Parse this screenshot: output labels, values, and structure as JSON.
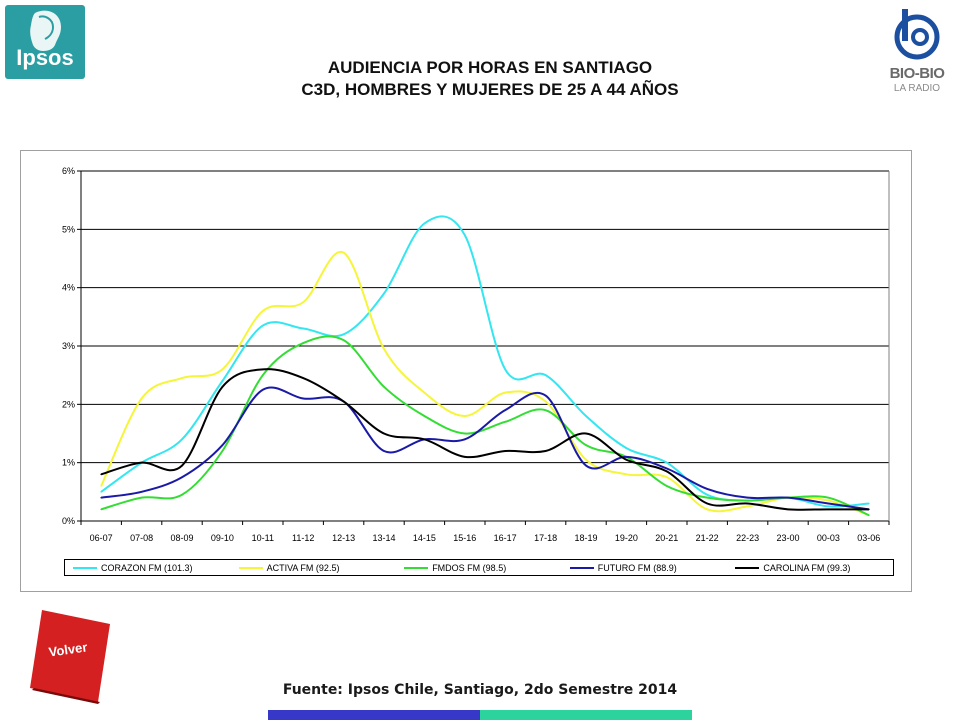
{
  "logos": {
    "ipsos_text": "Ipsos",
    "radio_name": "BIO-BIO",
    "radio_sub": "LA RADIO"
  },
  "header": {
    "title_line1": "AUDIENCIA POR HORAS EN SANTIAGO",
    "title_line2": "C3D, HOMBRES Y MUJERES DE 25 A 44 AÑOS"
  },
  "buttons": {
    "volver_label": "Volver"
  },
  "footer": {
    "source": "Fuente: Ipsos Chile, Santiago, 2do Semestre 2014"
  },
  "colors": {
    "ipsos_teal": "#2a9ea3",
    "volver_red": "#d42020",
    "bar_blue": "#3737c8",
    "bar_green": "#2cd39c"
  },
  "chart_data": {
    "type": "line",
    "title": "",
    "xlabel": "",
    "ylabel": "",
    "ylim": [
      0,
      6
    ],
    "yticks": [
      "0%",
      "1%",
      "2%",
      "3%",
      "4%",
      "5%",
      "6%"
    ],
    "grid": true,
    "legend_position": "bottom",
    "categories": [
      "06-07",
      "07-08",
      "08-09",
      "09-10",
      "10-11",
      "11-12",
      "12-13",
      "13-14",
      "14-15",
      "15-16",
      "16-17",
      "17-18",
      "18-19",
      "19-20",
      "20-21",
      "21-22",
      "22-23",
      "23-00",
      "00-03",
      "03-06"
    ],
    "series": [
      {
        "name": "CORAZON FM (101.3)",
        "color": "#33e6f0",
        "values": [
          0.5,
          1.0,
          1.4,
          2.4,
          3.35,
          3.3,
          3.2,
          3.9,
          5.1,
          4.9,
          2.6,
          2.5,
          1.8,
          1.25,
          1.0,
          0.45,
          0.35,
          0.4,
          0.25,
          0.3
        ]
      },
      {
        "name": "ACTIVA FM (92.5)",
        "color": "#f5f53a",
        "values": [
          0.6,
          2.1,
          2.45,
          2.6,
          3.6,
          3.75,
          4.6,
          2.95,
          2.2,
          1.8,
          2.2,
          2.05,
          1.05,
          0.8,
          0.75,
          0.2,
          0.25,
          0.4,
          0.35,
          0.1
        ]
      },
      {
        "name": "FMDOS FM (98.5)",
        "color": "#33dd33",
        "values": [
          0.2,
          0.4,
          0.45,
          1.2,
          2.5,
          3.05,
          3.1,
          2.3,
          1.8,
          1.5,
          1.7,
          1.9,
          1.3,
          1.1,
          0.6,
          0.4,
          0.35,
          0.4,
          0.4,
          0.1
        ]
      },
      {
        "name": "FUTURO FM (88.9)",
        "color": "#1a1aa6",
        "values": [
          0.4,
          0.5,
          0.75,
          1.3,
          2.25,
          2.1,
          2.05,
          1.2,
          1.4,
          1.4,
          1.9,
          2.15,
          0.95,
          1.1,
          0.9,
          0.55,
          0.4,
          0.4,
          0.3,
          0.2
        ]
      },
      {
        "name": "CAROLINA FM (99.3)",
        "color": "#000000",
        "values": [
          0.8,
          1.0,
          0.95,
          2.3,
          2.6,
          2.45,
          2.05,
          1.5,
          1.4,
          1.1,
          1.2,
          1.2,
          1.5,
          1.05,
          0.85,
          0.3,
          0.3,
          0.2,
          0.2,
          0.2
        ]
      }
    ]
  }
}
